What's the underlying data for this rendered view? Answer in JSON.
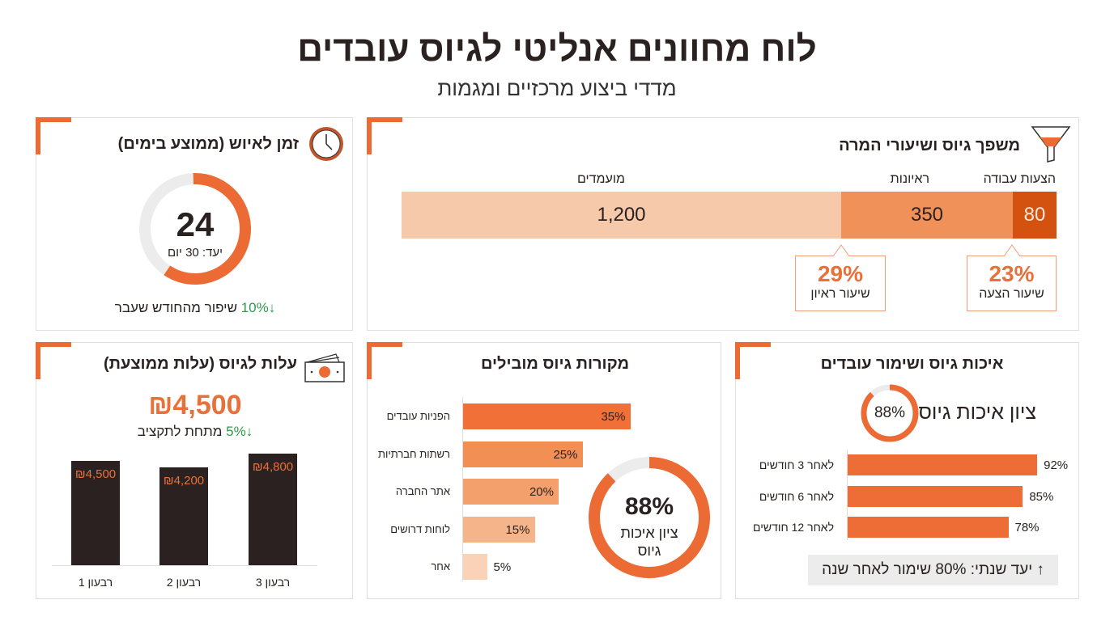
{
  "header": {
    "title": "לוח מחוונים אנליטי לגיוס עובדים",
    "subtitle": "מדדי ביצוע מרכזיים ומגמות"
  },
  "colors": {
    "accent": "#ec6a33",
    "dark": "#2b2120",
    "green": "#2e9a4c",
    "track": "#ececec"
  },
  "time_to_hire": {
    "title": "זמן לאיוש (ממוצע בימים)",
    "icon": "clock-icon",
    "value": "24",
    "target": "יעד: 30 יום",
    "ring_fill": 0.6,
    "change": "↓10%",
    "change_text": "שיפור מהחודש שעבר"
  },
  "funnel": {
    "title": "משפך גיוס ושיעורי המרה",
    "icon": "funnel-icon",
    "stages": [
      {
        "label": "הצעות עבודה",
        "value": "80",
        "color": "#d4520f"
      },
      {
        "label": "ראיונות",
        "value": "350",
        "color": "#f0915a"
      },
      {
        "label": "מועמדים",
        "value": "1,200",
        "color": "#f7c9ab"
      }
    ],
    "rates": [
      {
        "value": "23%",
        "label": "שיעור הצעה"
      },
      {
        "value": "29%",
        "label": "שיעור ראיון"
      }
    ]
  },
  "cost": {
    "title": "עלות לגיוס (עלות ממוצעת)",
    "icon": "money-icon",
    "value": "₪4,500",
    "change": "↓5%",
    "change_text": "מתחת לתקציב",
    "chart_data": {
      "type": "bar",
      "categories": [
        "רבעון 1",
        "רבעון 2",
        "רבעון 3"
      ],
      "values": [
        4500,
        4200,
        4800
      ],
      "labels": [
        "₪4,500",
        "₪4,200",
        "₪4,800"
      ]
    }
  },
  "sources": {
    "title": "מקורות גיוס מובילים",
    "chart_data": {
      "type": "bar",
      "orientation": "horizontal",
      "categories": [
        "הפניות עובדים",
        "רשתות חברתיות",
        "אתר החברה",
        "לוחות דרושים",
        "אחר"
      ],
      "values": [
        35,
        25,
        20,
        15,
        5
      ],
      "labels": [
        "35%",
        "25%",
        "20%",
        "15%",
        "5%"
      ],
      "colors": [
        "#f07038",
        "#f28f55",
        "#f4a06c",
        "#f5b48a",
        "#f9d2b8"
      ]
    },
    "donut": {
      "value": "88%",
      "fill": 0.88,
      "label_line1": "ציון איכות",
      "label_line2": "גיוס"
    }
  },
  "quality": {
    "title": "איכות גיוס ושימור עובדים",
    "score": "88%",
    "score_fill": 0.88,
    "score_label": "ציון איכות גיוס",
    "chart_data": {
      "type": "bar",
      "orientation": "horizontal",
      "categories": [
        "לאחר 3 חודשים",
        "לאחר 6 חודשים",
        "לאחר 12 חודשים"
      ],
      "values": [
        92,
        85,
        78
      ],
      "labels": [
        "92%",
        "85%",
        "78%"
      ]
    },
    "target": "↑ יעד שנתי: 80% שימור לאחר שנה"
  }
}
